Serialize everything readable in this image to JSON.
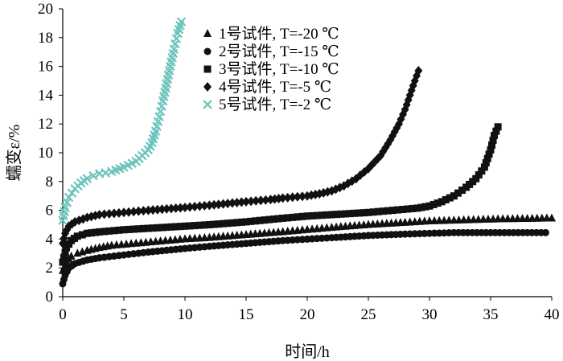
{
  "chart_data": {
    "type": "scatter",
    "xlabel": "时间/h",
    "ylabel": "蠕变ε/%",
    "xlim": [
      0,
      40
    ],
    "ylim": [
      0,
      20
    ],
    "xticks": [
      0,
      5,
      10,
      15,
      20,
      25,
      30,
      35,
      40
    ],
    "yticks": [
      0,
      2,
      4,
      6,
      8,
      10,
      12,
      14,
      16,
      18,
      20
    ],
    "grid": false,
    "legend_position": "top-center",
    "series": [
      {
        "name": "1号试件, T=-20 ℃",
        "marker": "triangle",
        "color": "#111111",
        "x": [
          0,
          0.3,
          0.7,
          1.2,
          2,
          3,
          4,
          6,
          8,
          10,
          12,
          15,
          18,
          20,
          22,
          25,
          28,
          30,
          32,
          34,
          36,
          38,
          40
        ],
        "y": [
          1.8,
          2.4,
          2.8,
          3.0,
          3.2,
          3.4,
          3.55,
          3.7,
          3.85,
          4.0,
          4.1,
          4.3,
          4.5,
          4.65,
          4.8,
          5.0,
          5.15,
          5.25,
          5.3,
          5.35,
          5.4,
          5.42,
          5.45
        ]
      },
      {
        "name": "2号试件, T=-15 ℃",
        "marker": "circle",
        "color": "#111111",
        "x": [
          0,
          0.2,
          0.5,
          1,
          2,
          3,
          5,
          7,
          10,
          12,
          15,
          18,
          20,
          22,
          25,
          28,
          30,
          32,
          35,
          38,
          39.5
        ],
        "y": [
          0.9,
          1.5,
          2.0,
          2.3,
          2.55,
          2.7,
          2.9,
          3.1,
          3.35,
          3.5,
          3.7,
          3.9,
          4.0,
          4.1,
          4.25,
          4.35,
          4.4,
          4.45,
          4.45,
          4.45,
          4.45
        ]
      },
      {
        "name": "3号试件, T=-10 ℃",
        "marker": "square",
        "color": "#111111",
        "x": [
          0,
          0.3,
          0.7,
          1.2,
          2,
          3,
          5,
          7,
          10,
          12,
          15,
          18,
          20,
          22,
          25,
          27,
          29,
          30,
          31,
          32,
          33,
          33.8,
          34.5,
          35,
          35.3,
          35.6
        ],
        "y": [
          2.4,
          3.4,
          3.9,
          4.2,
          4.4,
          4.5,
          4.65,
          4.75,
          4.9,
          5.0,
          5.2,
          5.45,
          5.6,
          5.7,
          5.85,
          6.0,
          6.15,
          6.3,
          6.6,
          7.0,
          7.6,
          8.2,
          9.0,
          10.2,
          11.2,
          11.8
        ]
      },
      {
        "name": "4号试件, T=-5 ℃",
        "marker": "diamond",
        "color": "#111111",
        "x": [
          0,
          0.2,
          0.5,
          1,
          2,
          3,
          5,
          7,
          10,
          12,
          15,
          17,
          18,
          20,
          21,
          22,
          23,
          24,
          25,
          26,
          26.8,
          27.5,
          28,
          28.4,
          28.8,
          29.1
        ],
        "y": [
          3.7,
          4.4,
          4.9,
          5.2,
          5.5,
          5.7,
          5.85,
          6.0,
          6.2,
          6.35,
          6.6,
          6.75,
          6.85,
          7.0,
          7.15,
          7.35,
          7.7,
          8.2,
          8.9,
          9.8,
          10.9,
          12.0,
          13.0,
          14.0,
          15.0,
          15.7
        ]
      },
      {
        "name": "5号试件, T=-2 ℃",
        "marker": "x",
        "color": "#6cc4bd",
        "x": [
          0,
          0.2,
          0.5,
          1,
          1.5,
          2,
          2.5,
          3,
          3.5,
          4,
          5,
          6,
          6.5,
          7,
          7.3,
          7.6,
          7.9,
          8.2,
          8.5,
          8.8,
          9.1,
          9.4,
          9.7
        ],
        "y": [
          5.3,
          6.2,
          6.9,
          7.5,
          7.9,
          8.2,
          8.4,
          8.55,
          8.6,
          8.7,
          9.0,
          9.4,
          9.8,
          10.2,
          10.7,
          11.5,
          12.5,
          13.6,
          14.8,
          16.0,
          17.2,
          18.3,
          19.1
        ]
      }
    ]
  }
}
